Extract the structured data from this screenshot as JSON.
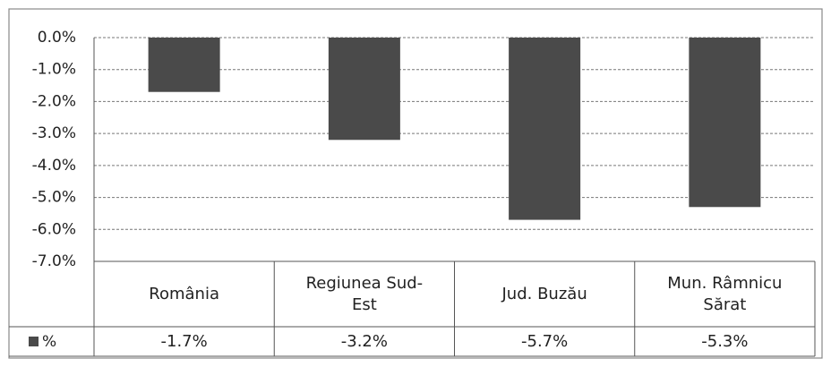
{
  "chart_data": {
    "type": "bar",
    "categories": [
      "România",
      "Regiunea Sud-Est",
      "Jud. Buzău",
      "Mun. Râmnicu Sărat"
    ],
    "series": [
      {
        "name": "%",
        "color": "#4a4a4a",
        "values": [
          -1.7,
          -3.2,
          -5.7,
          -5.3
        ],
        "value_labels": [
          "-1.7%",
          "-3.2%",
          "-5.7%",
          "-5.3%"
        ]
      }
    ],
    "ylim": [
      -7,
      0
    ],
    "yticks": [
      {
        "value": 0,
        "label": "0.0%"
      },
      {
        "value": -1,
        "label": "-1.0%"
      },
      {
        "value": -2,
        "label": "-2.0%"
      },
      {
        "value": -3,
        "label": "-3.0%"
      },
      {
        "value": -4,
        "label": "-4.0%"
      },
      {
        "value": -5,
        "label": "-5.0%"
      },
      {
        "value": -6,
        "label": "-6.0%"
      },
      {
        "value": -7,
        "label": "-7.0%"
      }
    ],
    "grid": true
  }
}
